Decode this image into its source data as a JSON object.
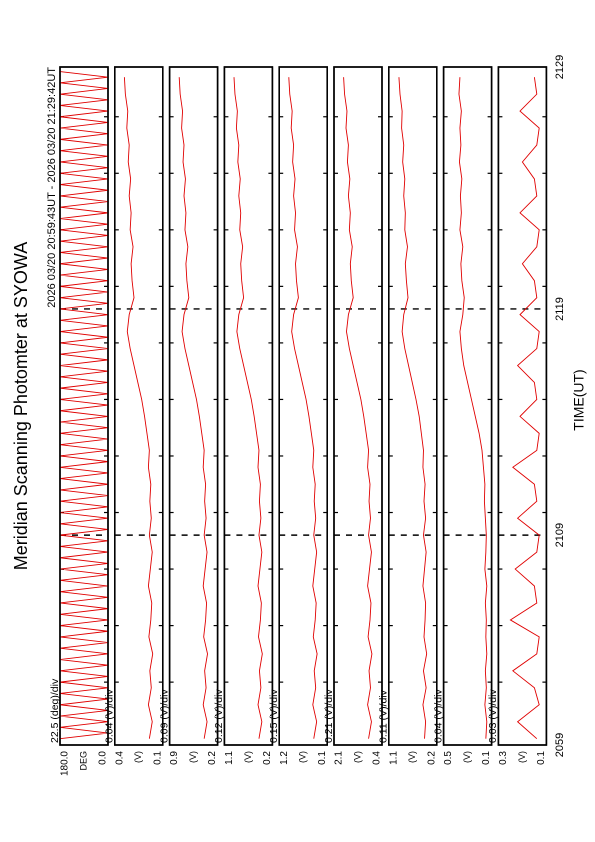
{
  "chart_data": {
    "type": "line",
    "title": "Meridian Scanning Photomter at SYOWA",
    "subtitle": "2026 03/20 20:59:43UT - 2026 03/20 21:29:42UT",
    "x_label": "TIME(UT)",
    "color": "#e00000",
    "xlim": [
      59.72,
      89.7
    ],
    "xticks": [
      {
        "value": 59.72,
        "label": "2059"
      },
      {
        "value": 69,
        "label": "2109"
      },
      {
        "value": 79,
        "label": "2119"
      },
      {
        "value": 89.7,
        "label": "2129"
      }
    ],
    "minor_xticks": [
      62.5,
      65,
      67.5,
      70,
      72.5,
      75,
      77.5,
      80,
      82.5,
      85,
      87.5
    ],
    "x": [
      60,
      60.75,
      61.5,
      62.25,
      63,
      63.75,
      64.5,
      65.25,
      66,
      66.75,
      67.5,
      68.25,
      69,
      69.75,
      70.5,
      71.25,
      72,
      72.75,
      73.5,
      74.25,
      75,
      75.75,
      76.5,
      77.25,
      78,
      78.75,
      79.5,
      80.25,
      81,
      81.75,
      82.5,
      83.25,
      84,
      84.75,
      85.5,
      86.25,
      87,
      87.75,
      88.5,
      89.25
    ],
    "panels": [
      {
        "scale_label": "22.5 (deg)/div",
        "unit": "DEG",
        "ylim": [
          0,
          180
        ],
        "yticks": [
          {
            "value": 0,
            "label": "0.0"
          },
          {
            "value": 180,
            "label": "180.0"
          }
        ],
        "x": [
          60,
          60.25,
          60.5,
          60.75,
          61,
          61.25,
          61.5,
          61.75,
          62,
          62.25,
          62.5,
          62.75,
          63,
          63.25,
          63.5,
          63.75,
          64,
          64.25,
          64.5,
          64.75,
          65,
          65.25,
          65.5,
          65.75,
          66,
          66.25,
          66.5,
          66.75,
          67,
          67.25,
          67.5,
          67.75,
          68,
          68.25,
          68.5,
          68.75,
          69,
          69.25,
          69.5,
          69.75,
          70,
          70.25,
          70.5,
          70.75,
          71,
          71.25,
          71.5,
          71.75,
          72,
          72.25,
          72.5,
          72.75,
          73,
          73.25,
          73.5,
          73.75,
          74,
          74.25,
          74.5,
          74.75,
          75,
          75.25,
          75.5,
          75.75,
          76,
          76.25,
          76.5,
          76.75,
          77,
          77.25,
          77.5,
          77.75,
          78,
          78.25,
          78.5,
          78.75,
          79,
          79.25,
          79.5,
          79.75,
          80,
          80.25,
          80.5,
          80.75,
          81,
          81.25,
          81.5,
          81.75,
          82,
          82.25,
          82.5,
          82.75,
          83,
          83.25,
          83.5,
          83.75,
          84,
          84.25,
          84.5,
          84.75,
          85,
          85.25,
          85.5,
          85.75,
          86,
          86.25,
          86.5,
          86.75,
          87,
          87.25,
          87.5,
          87.75,
          88,
          88.25,
          88.5,
          88.75,
          89,
          89.25,
          89.5
        ],
        "values": [
          180,
          0,
          180,
          0,
          180,
          0,
          180,
          0,
          180,
          0,
          180,
          0,
          180,
          0,
          180,
          0,
          180,
          0,
          180,
          0,
          180,
          0,
          180,
          0,
          180,
          0,
          180,
          0,
          180,
          0,
          180,
          0,
          180,
          0,
          180,
          0,
          180,
          0,
          180,
          0,
          180,
          0,
          180,
          0,
          180,
          0,
          180,
          0,
          180,
          0,
          180,
          0,
          180,
          0,
          180,
          0,
          180,
          0,
          180,
          0,
          180,
          0,
          180,
          0,
          180,
          0,
          180,
          0,
          180,
          0,
          180,
          0,
          180,
          0,
          180,
          0,
          180,
          0,
          180,
          0,
          180,
          0,
          180,
          0,
          180,
          0,
          180,
          0,
          180,
          0,
          180,
          0,
          180,
          0,
          180,
          0,
          180,
          0,
          180,
          0,
          180,
          0,
          180,
          0,
          180,
          0,
          180,
          0,
          180,
          0,
          180,
          0,
          180,
          0,
          180,
          0,
          180,
          0,
          180
        ]
      },
      {
        "scale_label": "0.04 (V)/div",
        "unit": "(V)",
        "ylim": [
          0.1,
          0.4
        ],
        "yticks": [
          0.1,
          0.4
        ],
        "values": [
          0.184,
          0.166,
          0.19,
          0.172,
          0.181,
          0.163,
          0.187,
          0.175,
          0.169,
          0.19,
          0.178,
          0.166,
          0.184,
          0.172,
          0.181,
          0.175,
          0.19,
          0.184,
          0.199,
          0.214,
          0.232,
          0.256,
          0.28,
          0.304,
          0.322,
          0.31,
          0.28,
          0.292,
          0.298,
          0.286,
          0.304,
          0.298,
          0.31,
          0.301,
          0.316,
          0.31,
          0.325,
          0.319,
          0.334,
          0.34
        ]
      },
      {
        "scale_label": "0.09 (V)/div",
        "unit": "(V)",
        "ylim": [
          0.2,
          0.9
        ],
        "yticks": [
          0.2,
          0.9
        ],
        "values": [
          0.396,
          0.354,
          0.41,
          0.368,
          0.389,
          0.347,
          0.403,
          0.375,
          0.361,
          0.41,
          0.382,
          0.354,
          0.396,
          0.368,
          0.389,
          0.375,
          0.41,
          0.396,
          0.431,
          0.466,
          0.508,
          0.564,
          0.62,
          0.676,
          0.718,
          0.69,
          0.62,
          0.648,
          0.662,
          0.634,
          0.676,
          0.662,
          0.69,
          0.669,
          0.704,
          0.69,
          0.725,
          0.711,
          0.746,
          0.76
        ]
      },
      {
        "scale_label": "0.12 (V)/div",
        "unit": "(V)",
        "ylim": [
          0.2,
          1.1
        ],
        "yticks": [
          0.2,
          1.1
        ],
        "values": [
          0.452,
          0.398,
          0.47,
          0.416,
          0.443,
          0.389,
          0.461,
          0.425,
          0.407,
          0.47,
          0.434,
          0.398,
          0.452,
          0.416,
          0.443,
          0.425,
          0.47,
          0.452,
          0.497,
          0.542,
          0.596,
          0.668,
          0.74,
          0.812,
          0.866,
          0.83,
          0.74,
          0.776,
          0.794,
          0.758,
          0.812,
          0.794,
          0.83,
          0.803,
          0.848,
          0.83,
          0.875,
          0.857,
          0.902,
          0.92
        ]
      },
      {
        "scale_label": "0.15 (V)/div",
        "unit": "(V)",
        "ylim": [
          0.1,
          1.2
        ],
        "yticks": [
          0.1,
          1.2
        ],
        "values": [
          0.408,
          0.342,
          0.43,
          0.364,
          0.397,
          0.331,
          0.419,
          0.375,
          0.353,
          0.43,
          0.386,
          0.342,
          0.408,
          0.364,
          0.397,
          0.375,
          0.43,
          0.408,
          0.463,
          0.518,
          0.584,
          0.672,
          0.76,
          0.848,
          0.914,
          0.87,
          0.76,
          0.804,
          0.826,
          0.782,
          0.848,
          0.826,
          0.87,
          0.837,
          0.892,
          0.87,
          0.925,
          0.903,
          0.958,
          0.98
        ]
      },
      {
        "scale_label": "0.21 (V)/div",
        "unit": "(V)",
        "ylim": [
          0.4,
          2.1
        ],
        "yticks": [
          0.4,
          2.1
        ],
        "values": [
          0.876,
          0.774,
          0.91,
          0.808,
          0.859,
          0.757,
          0.893,
          0.825,
          0.791,
          0.91,
          0.842,
          0.774,
          0.876,
          0.808,
          0.859,
          0.825,
          0.91,
          0.876,
          0.961,
          1.046,
          1.148,
          1.284,
          1.42,
          1.556,
          1.658,
          1.59,
          1.42,
          1.488,
          1.522,
          1.454,
          1.556,
          1.522,
          1.59,
          1.539,
          1.624,
          1.59,
          1.675,
          1.641,
          1.726,
          1.76
        ]
      },
      {
        "scale_label": "0.11 (V)/div",
        "unit": "(V)",
        "ylim": [
          0.2,
          1.1
        ],
        "yticks": [
          0.2,
          1.1
        ],
        "values": [
          0.43,
          0.41,
          0.46,
          0.4,
          0.45,
          0.39,
          0.44,
          0.42,
          0.41,
          0.46,
          0.43,
          0.4,
          0.45,
          0.41,
          0.44,
          0.42,
          0.46,
          0.45,
          0.49,
          0.53,
          0.59,
          0.66,
          0.73,
          0.8,
          0.85,
          0.82,
          0.74,
          0.77,
          0.79,
          0.75,
          0.8,
          0.79,
          0.82,
          0.8,
          0.84,
          0.82,
          0.86,
          0.85,
          0.89,
          0.91
        ]
      },
      {
        "scale_label": "0.04 (V)/div",
        "unit": "(V)",
        "ylim": [
          0.1,
          0.5
        ],
        "yticks": [
          0.1,
          0.5
        ],
        "values": [
          0.148,
          0.14,
          0.156,
          0.144,
          0.152,
          0.14,
          0.148,
          0.144,
          0.152,
          0.14,
          0.156,
          0.148,
          0.144,
          0.152,
          0.16,
          0.156,
          0.168,
          0.18,
          0.204,
          0.236,
          0.268,
          0.3,
          0.332,
          0.352,
          0.364,
          0.34,
          0.328,
          0.348,
          0.356,
          0.34,
          0.364,
          0.352,
          0.36,
          0.348,
          0.368,
          0.356,
          0.364,
          0.352,
          0.372,
          0.364
        ]
      },
      {
        "scale_label": "0.03 (V)/div",
        "unit": "(V)",
        "ylim": [
          0.1,
          0.3
        ],
        "yticks": [
          0.1,
          0.3
        ],
        "values": [
          0.14,
          0.22,
          0.13,
          0.15,
          0.24,
          0.14,
          0.13,
          0.25,
          0.14,
          0.15,
          0.23,
          0.14,
          0.13,
          0.22,
          0.14,
          0.15,
          0.24,
          0.14,
          0.13,
          0.21,
          0.14,
          0.15,
          0.22,
          0.14,
          0.13,
          0.21,
          0.14,
          0.15,
          0.2,
          0.14,
          0.13,
          0.21,
          0.14,
          0.15,
          0.2,
          0.14,
          0.13,
          0.21,
          0.14,
          0.15
        ]
      }
    ]
  }
}
